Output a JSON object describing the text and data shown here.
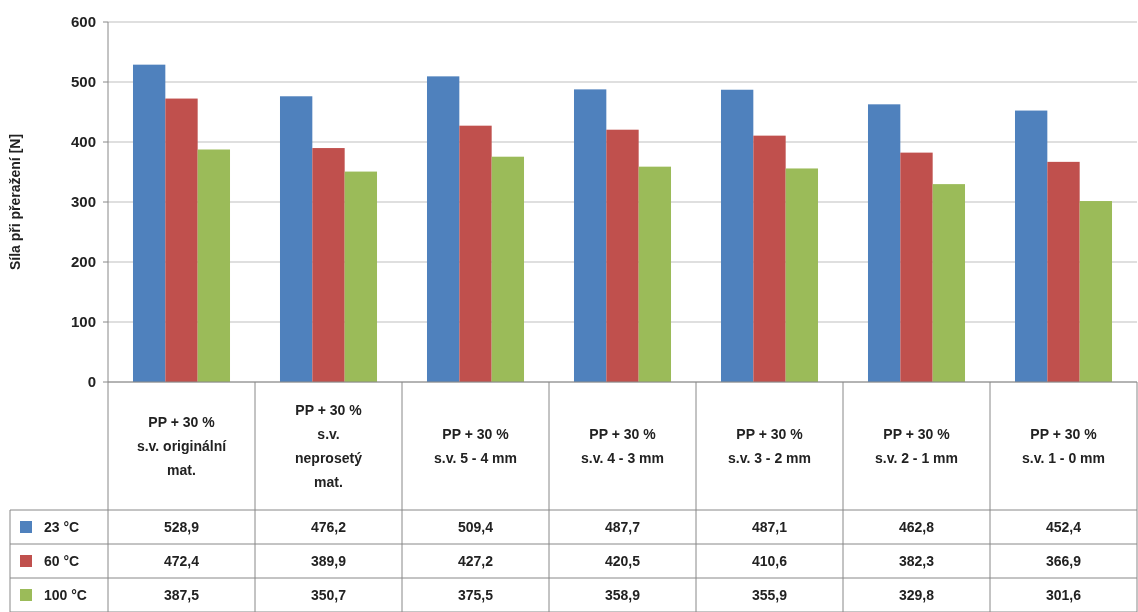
{
  "chart_data": {
    "type": "bar",
    "ylabel": "Síla při přeražení [N]",
    "categories": [
      "PP + 30 % s.v. originální mat.",
      "PP + 30 % s.v. neprosetý mat.",
      "PP + 30 % s.v. 5 - 4 mm",
      "PP + 30 % s.v. 4 - 3 mm",
      "PP + 30 % s.v. 3 - 2 mm",
      "PP + 30 % s.v. 2 - 1 mm",
      "PP + 30 % s.v. 1 - 0 mm"
    ],
    "series": [
      {
        "name": "23 °C",
        "color": "#4f81bd",
        "values": [
          528.9,
          476.2,
          509.4,
          487.7,
          487.1,
          462.8,
          452.4
        ],
        "value_labels": [
          "528,9",
          "476,2",
          "509,4",
          "487,7",
          "487,1",
          "462,8",
          "452,4"
        ]
      },
      {
        "name": "60 °C",
        "color": "#c0504d",
        "values": [
          472.4,
          389.9,
          427.2,
          420.5,
          410.6,
          382.3,
          366.9
        ],
        "value_labels": [
          "472,4",
          "389,9",
          "427,2",
          "420,5",
          "410,6",
          "382,3",
          "366,9"
        ]
      },
      {
        "name": "100 °C",
        "color": "#9bbb59",
        "values": [
          387.5,
          350.7,
          375.5,
          358.9,
          355.9,
          329.8,
          301.6
        ],
        "value_labels": [
          "387,5",
          "350,7",
          "375,5",
          "358,9",
          "355,9",
          "329,8",
          "301,6"
        ]
      }
    ],
    "ylim": [
      0,
      600
    ],
    "yticks": [
      0,
      100,
      200,
      300,
      400,
      500,
      600
    ],
    "grid": "y",
    "legend": "bottom"
  }
}
